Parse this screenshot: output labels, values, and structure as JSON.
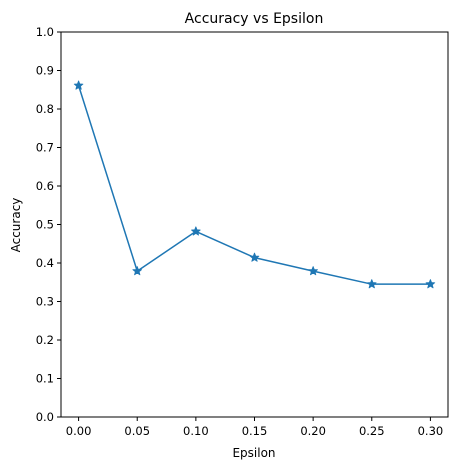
{
  "chart_data": {
    "type": "line",
    "title": "Accuracy vs Epsilon",
    "xlabel": "Epsilon",
    "ylabel": "Accuracy",
    "xlim": [
      -0.015,
      0.315
    ],
    "ylim": [
      0.0,
      1.0
    ],
    "x_ticks": [
      0.0,
      0.05,
      0.1,
      0.15,
      0.2,
      0.25,
      0.3
    ],
    "x_tick_labels": [
      "0.00",
      "0.05",
      "0.10",
      "0.15",
      "0.20",
      "0.25",
      "0.30"
    ],
    "y_ticks": [
      0.0,
      0.1,
      0.2,
      0.3,
      0.4,
      0.5,
      0.6,
      0.7,
      0.8,
      0.9,
      1.0
    ],
    "y_tick_labels": [
      "0.0",
      "0.1",
      "0.2",
      "0.3",
      "0.4",
      "0.5",
      "0.6",
      "0.7",
      "0.8",
      "0.9",
      "1.0"
    ],
    "grid": false,
    "series": [
      {
        "color": "#1f77b4",
        "marker": "star",
        "x": [
          0.0,
          0.05,
          0.1,
          0.15,
          0.2,
          0.25,
          0.3
        ],
        "y": [
          0.861,
          0.379,
          0.482,
          0.414,
          0.379,
          0.345,
          0.345
        ]
      }
    ]
  }
}
